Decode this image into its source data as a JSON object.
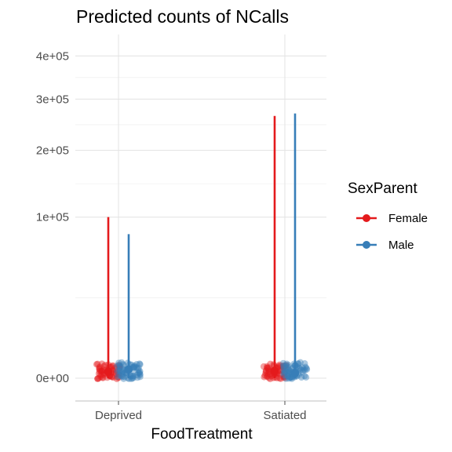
{
  "chart_data": {
    "type": "scatter",
    "title": "Predicted counts of NCalls",
    "xlabel": "FoodTreatment",
    "ylabel": "",
    "categories": [
      "Deprived",
      "Satiated"
    ],
    "y_scale": "sqrt",
    "y_ticks": [
      0,
      100000,
      200000,
      300000,
      400000
    ],
    "y_tick_labels": [
      "0e+00",
      "1e+05",
      "2e+05",
      "3e+05",
      "4e+05"
    ],
    "y_range": [
      -2000,
      455000
    ],
    "grid": true,
    "legend": {
      "title": "SexParent",
      "position": "right",
      "entries": [
        "Female",
        "Male"
      ]
    },
    "series": [
      {
        "name": "Female",
        "color": "#e41a1c",
        "mean": [
          165,
          210
        ],
        "upper": [
          100000,
          265000
        ],
        "points": [
          [
            0,
            0,
            0,
            0,
            0,
            0,
            1,
            1,
            4,
            4,
            9,
            9,
            16,
            16,
            25,
            25,
            36,
            36,
            49,
            49,
            64,
            64,
            81,
            81,
            100,
            100,
            121,
            121,
            144,
            144,
            169,
            169,
            196,
            196,
            225,
            225,
            256,
            256,
            289,
            289,
            324,
            324,
            361,
            361,
            400,
            400,
            441,
            441,
            484,
            484,
            529,
            529,
            576,
            576,
            625,
            625,
            676,
            676,
            729,
            729,
            784
          ],
          [
            0,
            0,
            0,
            0,
            0,
            0,
            1,
            1,
            4,
            4,
            9,
            9,
            16,
            16,
            25,
            25,
            36,
            36,
            49,
            49,
            64,
            64,
            81,
            81,
            100,
            100,
            121,
            121,
            144,
            144,
            169,
            169,
            196,
            196,
            225,
            225,
            256,
            256,
            289,
            289,
            324,
            324,
            361,
            361,
            400,
            400,
            441,
            441,
            484,
            484,
            529,
            529,
            576,
            576,
            625,
            625,
            676,
            676,
            729,
            729,
            784
          ]
        ]
      },
      {
        "name": "Male",
        "color": "#377eb8",
        "mean": [
          300,
          100
        ],
        "upper": [
          80000,
          270000
        ],
        "points": [
          [
            0,
            0,
            0,
            0,
            0,
            1,
            1,
            4,
            4,
            9,
            9,
            16,
            16,
            25,
            25,
            36,
            36,
            49,
            49,
            64,
            64,
            81,
            81,
            100,
            100,
            121,
            121,
            144,
            144,
            169,
            169,
            196,
            196,
            225,
            225,
            256,
            256,
            289,
            289,
            324,
            324,
            361,
            361,
            400,
            400,
            441,
            441,
            484,
            484,
            529,
            529,
            576,
            576,
            625,
            625,
            676,
            676,
            729,
            729,
            784,
            784,
            841,
            841,
            900
          ],
          [
            0,
            0,
            0,
            0,
            0,
            1,
            1,
            4,
            4,
            9,
            9,
            16,
            16,
            25,
            25,
            36,
            36,
            49,
            49,
            64,
            64,
            81,
            81,
            100,
            100,
            121,
            121,
            144,
            144,
            169,
            169,
            196,
            196,
            225,
            225,
            256,
            256,
            289,
            289,
            324,
            324,
            361,
            361,
            400,
            400,
            441,
            441,
            484,
            484,
            529,
            529,
            576,
            576,
            625,
            625,
            676,
            676,
            729,
            729,
            784,
            784,
            841,
            841,
            900
          ]
        ]
      }
    ]
  }
}
